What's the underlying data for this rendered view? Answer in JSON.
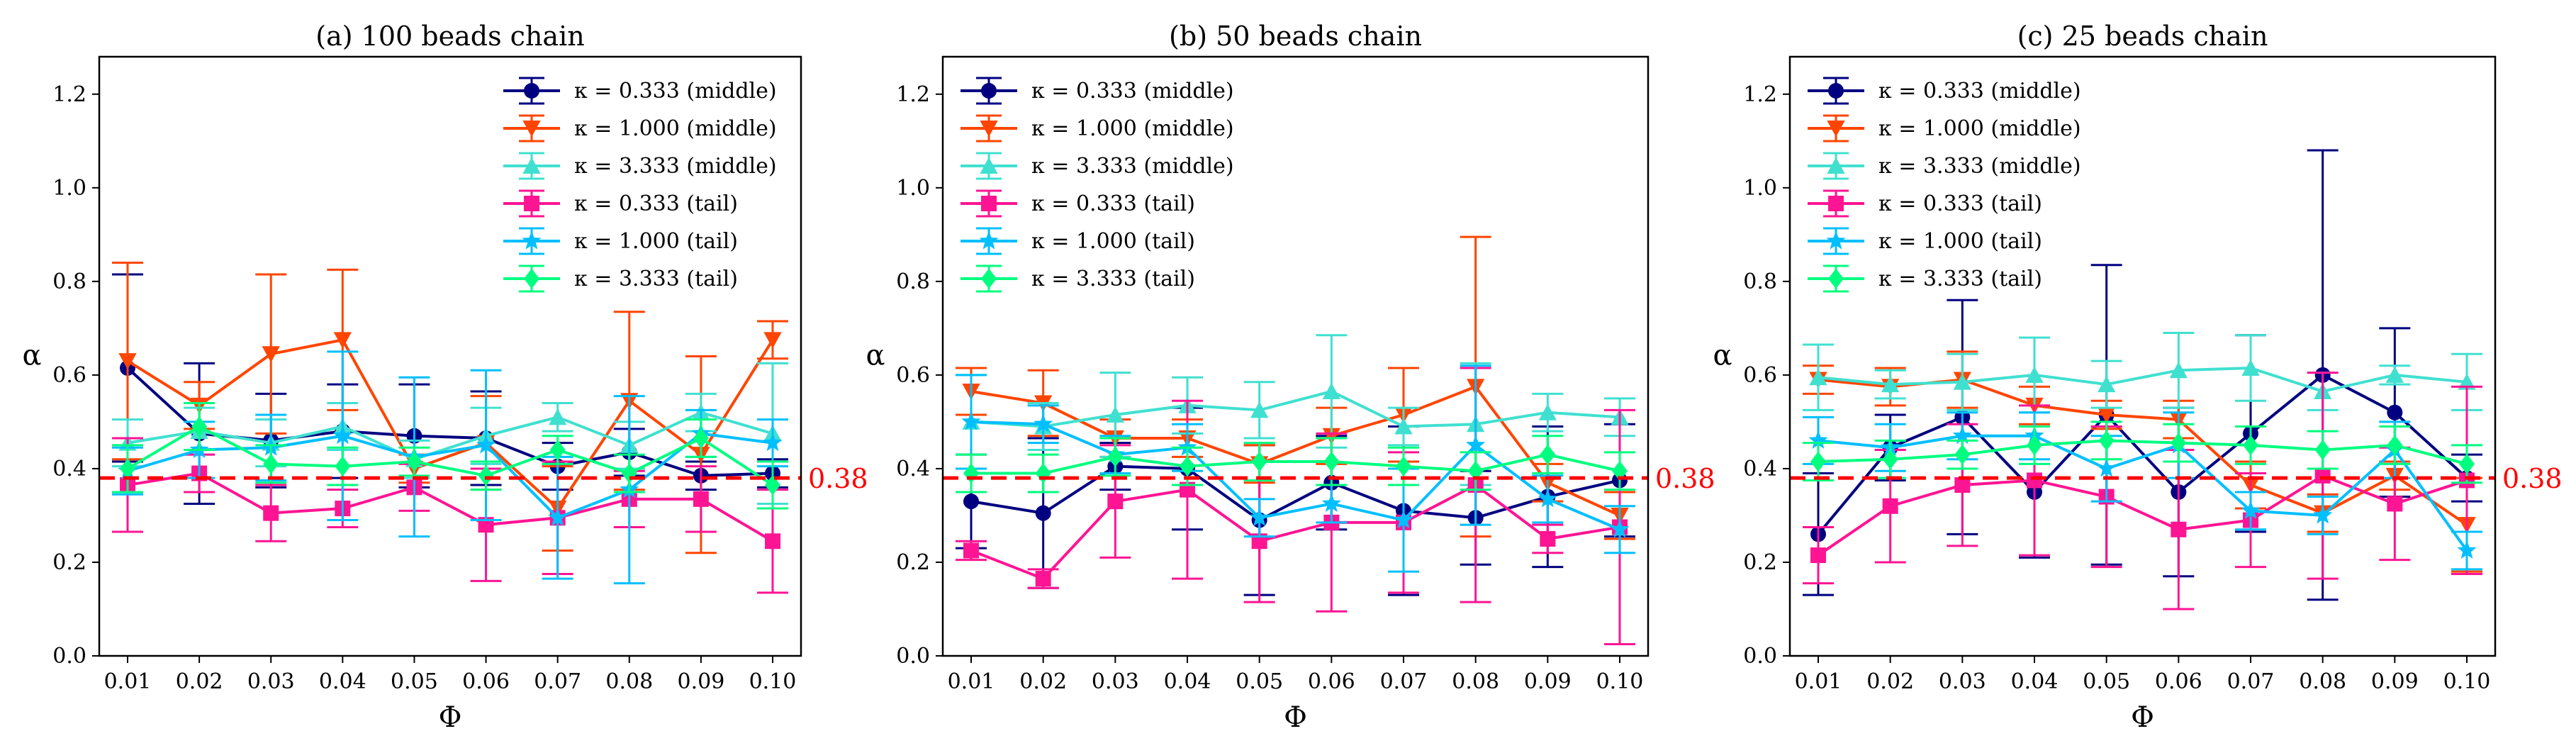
{
  "chart_data": [
    {
      "type": "line",
      "title": "(a) 100 beads chain",
      "xlabel": "Φ",
      "ylabel": "α",
      "x": [
        0.01,
        0.02,
        0.03,
        0.04,
        0.05,
        0.06,
        0.07,
        0.08,
        0.09,
        0.1
      ],
      "x_tick_labels": [
        "0.01",
        "0.02",
        "0.03",
        "0.04",
        "0.05",
        "0.06",
        "0.07",
        "0.08",
        "0.09",
        "0.10"
      ],
      "ylim": [
        0.0,
        1.28
      ],
      "y_ticks": [
        0.0,
        0.2,
        0.4,
        0.6,
        0.8,
        1.0,
        1.2
      ],
      "y_tick_labels": [
        "0.0",
        "0.2",
        "0.4",
        "0.6",
        "0.8",
        "1.0",
        "1.2"
      ],
      "reference_line": {
        "value": 0.38,
        "label": "0.38",
        "color": "#ff0000"
      },
      "legend_position": "upper-right",
      "series": [
        {
          "name": "κ = 0.333 (middle)",
          "color": "#000080",
          "marker": "circle",
          "values": [
            0.615,
            0.475,
            0.46,
            0.48,
            0.47,
            0.465,
            0.405,
            0.435,
            0.385,
            0.39
          ],
          "errors": [
            0.2,
            0.15,
            0.1,
            0.1,
            0.11,
            0.1,
            0.05,
            0.05,
            0.03,
            0.03
          ]
        },
        {
          "name": "κ = 1.000 (middle)",
          "color": "#ff4500",
          "marker": "triangle-down",
          "values": [
            0.63,
            0.535,
            0.645,
            0.675,
            0.4,
            0.455,
            0.315,
            0.545,
            0.43,
            0.675
          ],
          "errors": [
            0.21,
            0.05,
            0.17,
            0.15,
            0.03,
            0.1,
            0.09,
            0.19,
            0.21,
            0.04
          ]
        },
        {
          "name": "κ = 3.333 (middle)",
          "color": "#40e0d0",
          "marker": "triangle-up",
          "values": [
            0.455,
            0.48,
            0.455,
            0.49,
            0.42,
            0.47,
            0.51,
            0.45,
            0.52,
            0.475
          ],
          "errors": [
            0.05,
            0.05,
            0.05,
            0.05,
            0.04,
            0.06,
            0.03,
            0.05,
            0.04,
            0.15
          ]
        },
        {
          "name": "κ = 0.333 (tail)",
          "color": "#ff1493",
          "marker": "square",
          "values": [
            0.365,
            0.39,
            0.305,
            0.315,
            0.36,
            0.28,
            0.295,
            0.335,
            0.335,
            0.245
          ],
          "errors": [
            0.1,
            0.04,
            0.06,
            0.04,
            0.05,
            0.12,
            0.12,
            0.06,
            0.07,
            0.11
          ]
        },
        {
          "name": "κ = 1.000 (tail)",
          "color": "#00bfff",
          "marker": "star",
          "values": [
            0.395,
            0.44,
            0.445,
            0.47,
            0.425,
            0.45,
            0.295,
            0.355,
            0.475,
            0.455
          ],
          "errors": [
            0.05,
            0.06,
            0.07,
            0.18,
            0.17,
            0.16,
            0.13,
            0.2,
            0.05,
            0.05
          ]
        },
        {
          "name": "κ = 3.333 (tail)",
          "color": "#00ff7f",
          "marker": "diamond",
          "values": [
            0.4,
            0.49,
            0.41,
            0.405,
            0.415,
            0.385,
            0.44,
            0.39,
            0.465,
            0.365
          ],
          "errors": [
            0.05,
            0.05,
            0.04,
            0.04,
            0.03,
            0.03,
            0.03,
            0.04,
            0.04,
            0.05
          ]
        }
      ]
    },
    {
      "type": "line",
      "title": "(b) 50 beads chain",
      "xlabel": "Φ",
      "ylabel": "α",
      "x": [
        0.01,
        0.02,
        0.03,
        0.04,
        0.05,
        0.06,
        0.07,
        0.08,
        0.09,
        0.1
      ],
      "x_tick_labels": [
        "0.01",
        "0.02",
        "0.03",
        "0.04",
        "0.05",
        "0.06",
        "0.07",
        "0.08",
        "0.09",
        "0.10"
      ],
      "ylim": [
        0.0,
        1.28
      ],
      "y_ticks": [
        0.0,
        0.2,
        0.4,
        0.6,
        0.8,
        1.0,
        1.2
      ],
      "y_tick_labels": [
        "0.0",
        "0.2",
        "0.4",
        "0.6",
        "0.8",
        "1.0",
        "1.2"
      ],
      "reference_line": {
        "value": 0.38,
        "label": "0.38",
        "color": "#ff0000"
      },
      "legend_position": "upper-left",
      "series": [
        {
          "name": "κ = 0.333 (middle)",
          "color": "#000080",
          "marker": "circle",
          "values": [
            0.33,
            0.305,
            0.405,
            0.4,
            0.29,
            0.37,
            0.31,
            0.295,
            0.34,
            0.375
          ],
          "errors": [
            0.1,
            0.16,
            0.05,
            0.13,
            0.16,
            0.1,
            0.18,
            0.1,
            0.15,
            0.12
          ]
        },
        {
          "name": "κ = 1.000 (middle)",
          "color": "#ff4500",
          "marker": "triangle-down",
          "values": [
            0.565,
            0.54,
            0.465,
            0.465,
            0.41,
            0.47,
            0.515,
            0.575,
            0.37,
            0.3
          ],
          "errors": [
            0.05,
            0.07,
            0.04,
            0.04,
            0.04,
            0.06,
            0.1,
            0.32,
            0.04,
            0.05
          ]
        },
        {
          "name": "κ = 3.333 (middle)",
          "color": "#40e0d0",
          "marker": "triangle-up",
          "values": [
            0.5,
            0.49,
            0.515,
            0.535,
            0.525,
            0.565,
            0.49,
            0.495,
            0.52,
            0.51
          ],
          "errors": [
            0.1,
            0.05,
            0.09,
            0.06,
            0.06,
            0.12,
            0.04,
            0.13,
            0.04,
            0.04
          ]
        },
        {
          "name": "κ = 0.333 (tail)",
          "color": "#ff1493",
          "marker": "square",
          "values": [
            0.225,
            0.165,
            0.33,
            0.355,
            0.245,
            0.285,
            0.285,
            0.365,
            0.25,
            0.275
          ],
          "errors": [
            0.02,
            0.02,
            0.12,
            0.19,
            0.13,
            0.19,
            0.15,
            0.25,
            0.03,
            0.25
          ]
        },
        {
          "name": "κ = 1.000 (tail)",
          "color": "#00bfff",
          "marker": "star",
          "values": [
            0.5,
            0.495,
            0.43,
            0.445,
            0.295,
            0.325,
            0.29,
            0.45,
            0.335,
            0.27
          ],
          "errors": [
            0.1,
            0.04,
            0.04,
            0.05,
            0.04,
            0.04,
            0.11,
            0.17,
            0.05,
            0.05
          ]
        },
        {
          "name": "κ = 3.333 (tail)",
          "color": "#00ff7f",
          "marker": "diamond",
          "values": [
            0.39,
            0.39,
            0.425,
            0.405,
            0.415,
            0.415,
            0.405,
            0.395,
            0.43,
            0.395
          ],
          "errors": [
            0.04,
            0.04,
            0.04,
            0.04,
            0.04,
            0.05,
            0.04,
            0.04,
            0.04,
            0.04
          ]
        }
      ]
    },
    {
      "type": "line",
      "title": "(c) 25 beads chain",
      "xlabel": "Φ",
      "ylabel": "α",
      "x": [
        0.01,
        0.02,
        0.03,
        0.04,
        0.05,
        0.06,
        0.07,
        0.08,
        0.09,
        0.1
      ],
      "x_tick_labels": [
        "0.01",
        "0.02",
        "0.03",
        "0.04",
        "0.05",
        "0.06",
        "0.07",
        "0.08",
        "0.09",
        "0.10"
      ],
      "ylim": [
        0.0,
        1.28
      ],
      "y_ticks": [
        0.0,
        0.2,
        0.4,
        0.6,
        0.8,
        1.0,
        1.2
      ],
      "y_tick_labels": [
        "0.0",
        "0.2",
        "0.4",
        "0.6",
        "0.8",
        "1.0",
        "1.2"
      ],
      "reference_line": {
        "value": 0.38,
        "label": "0.38",
        "color": "#ff0000"
      },
      "legend_position": "upper-left",
      "series": [
        {
          "name": "κ = 0.333 (middle)",
          "color": "#000080",
          "marker": "circle",
          "values": [
            0.26,
            0.445,
            0.51,
            0.35,
            0.515,
            0.35,
            0.475,
            0.6,
            0.52,
            0.38
          ],
          "errors": [
            0.13,
            0.07,
            0.25,
            0.14,
            0.32,
            0.18,
            0.21,
            0.48,
            0.18,
            0.05
          ]
        },
        {
          "name": "κ = 1.000 (middle)",
          "color": "#ff4500",
          "marker": "triangle-down",
          "values": [
            0.59,
            0.575,
            0.59,
            0.535,
            0.515,
            0.505,
            0.365,
            0.305,
            0.385,
            0.28
          ],
          "errors": [
            0.03,
            0.04,
            0.06,
            0.04,
            0.03,
            0.04,
            0.05,
            0.04,
            0.03,
            0.1
          ]
        },
        {
          "name": "κ = 3.333 (middle)",
          "color": "#40e0d0",
          "marker": "triangle-up",
          "values": [
            0.595,
            0.58,
            0.585,
            0.6,
            0.58,
            0.61,
            0.615,
            0.565,
            0.6,
            0.585
          ],
          "errors": [
            0.07,
            0.03,
            0.06,
            0.08,
            0.05,
            0.08,
            0.07,
            0.04,
            0.02,
            0.06
          ]
        },
        {
          "name": "κ = 0.333 (tail)",
          "color": "#ff1493",
          "marker": "square",
          "values": [
            0.215,
            0.32,
            0.365,
            0.375,
            0.34,
            0.27,
            0.29,
            0.385,
            0.325,
            0.375
          ],
          "errors": [
            0.06,
            0.12,
            0.13,
            0.16,
            0.15,
            0.17,
            0.1,
            0.22,
            0.12,
            0.2
          ]
        },
        {
          "name": "κ = 1.000 (tail)",
          "color": "#00bfff",
          "marker": "star",
          "values": [
            0.46,
            0.445,
            0.47,
            0.47,
            0.4,
            0.45,
            0.31,
            0.3,
            0.44,
            0.225
          ],
          "errors": [
            0.05,
            0.05,
            0.05,
            0.05,
            0.07,
            0.07,
            0.04,
            0.04,
            0.06,
            0.04
          ]
        },
        {
          "name": "κ = 3.333 (tail)",
          "color": "#00ff7f",
          "marker": "diamond",
          "values": [
            0.415,
            0.42,
            0.43,
            0.45,
            0.46,
            0.455,
            0.45,
            0.44,
            0.45,
            0.41
          ],
          "errors": [
            0.04,
            0.04,
            0.03,
            0.04,
            0.04,
            0.04,
            0.04,
            0.04,
            0.04,
            0.04
          ]
        }
      ]
    }
  ]
}
